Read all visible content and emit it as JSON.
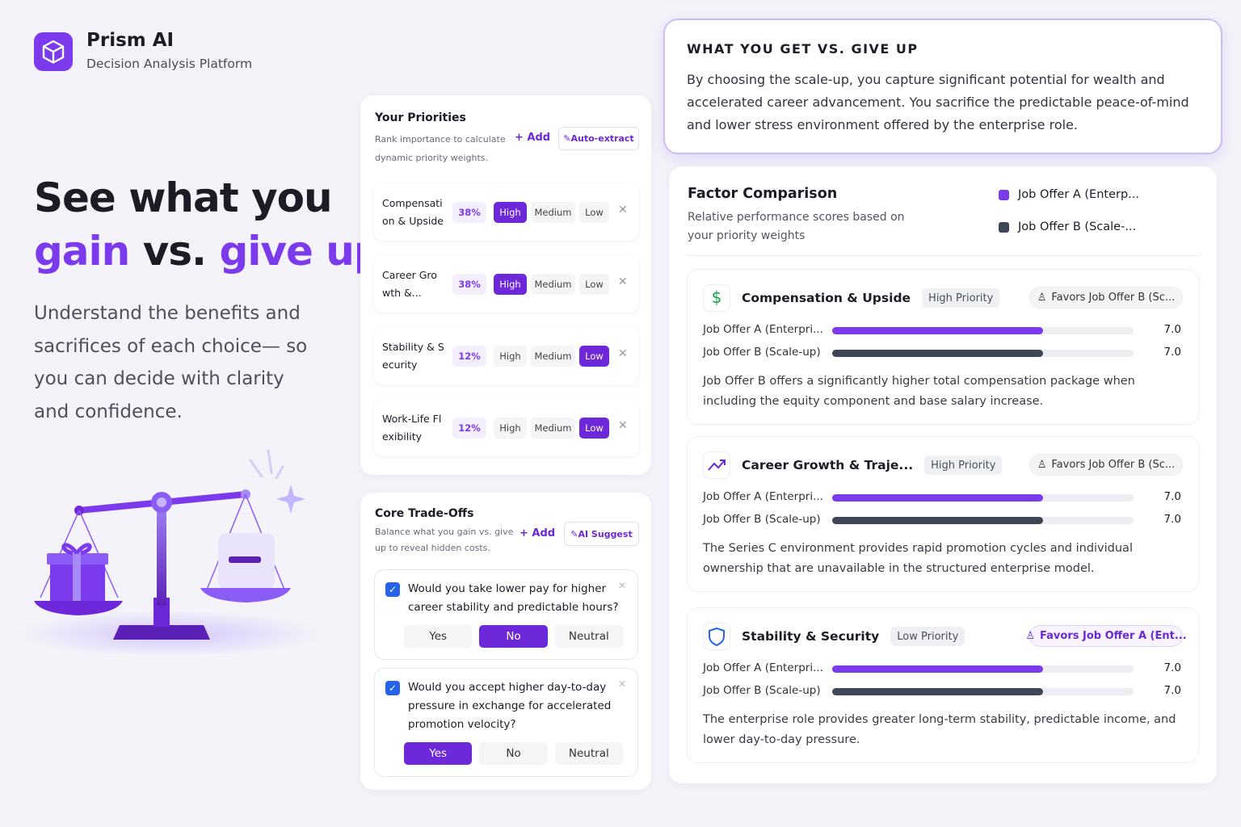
{
  "brand": {
    "name": "Prism AI",
    "tagline": "Decision Analysis Platform"
  },
  "hero": {
    "line1": "See what you",
    "gain": "gain",
    "vs": "vs.",
    "give_up": "give up.",
    "description": "Understand the benefits and sacrifices of each choice— so you can decide with clarity and confidence."
  },
  "priorities": {
    "title": "Your Priorities",
    "subtitle": "Rank importance to calculate dynamic priority weights.",
    "add": "Add",
    "extract": "Auto-extract",
    "levels": [
      "High",
      "Medium",
      "Low"
    ],
    "items": [
      {
        "label": "Compensation & Upside",
        "weight": "38%",
        "selected": "High"
      },
      {
        "label": "Career Growth &...",
        "weight": "38%",
        "selected": "High"
      },
      {
        "label": "Stability & Security",
        "weight": "12%",
        "selected": "Low"
      },
      {
        "label": "Work-Life Flexibility",
        "weight": "12%",
        "selected": "Low"
      }
    ]
  },
  "tradeoffs": {
    "title": "Core Trade-Offs",
    "subtitle": "Balance what you gain vs. give up to reveal hidden costs.",
    "add": "Add",
    "suggest": "AI Suggest",
    "options": [
      "Yes",
      "No",
      "Neutral"
    ],
    "questions": [
      {
        "text": "Would you take lower pay for higher career stability and predictable hours?",
        "checked": true,
        "selected": "No"
      },
      {
        "text": "Would you accept higher day-to-day pressure in exchange for accelerated promotion velocity?",
        "checked": true,
        "selected": "Yes"
      }
    ]
  },
  "summary": {
    "title": "WHAT YOU GET VS. GIVE UP",
    "text": "By choosing the scale-up, you capture significant potential for wealth and accelerated career advancement. You sacrifice the predictable peace-of-mind and lower stress environment offered by the enterprise role."
  },
  "comparison": {
    "title": "Factor Comparison",
    "subtitle": "Relative performance scores based on your priority weights",
    "xlim": [
      0,
      10
    ],
    "legend": [
      {
        "name": "Job Offer A (Enterp...",
        "color": "#7c3aed"
      },
      {
        "name": "Job Offer B (Scale-...",
        "color": "#3f4756"
      }
    ],
    "factors": [
      {
        "name": "Compensation & Upside",
        "priority": "High Priority",
        "favors": "Favors Job Offer B (Sc...",
        "rows": [
          {
            "label": "Job Offer A (Enterpri...",
            "value": 7,
            "value_label": "7.0"
          },
          {
            "label": "Job Offer B (Scale-up)",
            "value": 7,
            "value_label": "7.0"
          }
        ],
        "note": "Job Offer B offers a significantly higher total compensation package when including the equity component and base salary increase."
      },
      {
        "name": "Career Growth & Traje...",
        "priority": "High Priority",
        "favors": "Favors Job Offer B (Sc...",
        "rows": [
          {
            "label": "Job Offer A (Enterpri...",
            "value": 7,
            "value_label": "7.0"
          },
          {
            "label": "Job Offer B (Scale-up)",
            "value": 7,
            "value_label": "7.0"
          }
        ],
        "note": "The Series C environment provides rapid promotion cycles and individual ownership that are unavailable in the structured enterprise model."
      },
      {
        "name": "Stability & Security",
        "priority": "Low Priority",
        "favors": "Favors Job Offer A (Ent...",
        "rows": [
          {
            "label": "Job Offer A (Enterpri...",
            "value": 7,
            "value_label": "7.0"
          },
          {
            "label": "Job Offer B (Scale-up)",
            "value": 7,
            "value_label": "7.0"
          }
        ],
        "note": "The enterprise role provides greater long-term stability, predictable income, and lower day-to-day pressure."
      }
    ]
  }
}
